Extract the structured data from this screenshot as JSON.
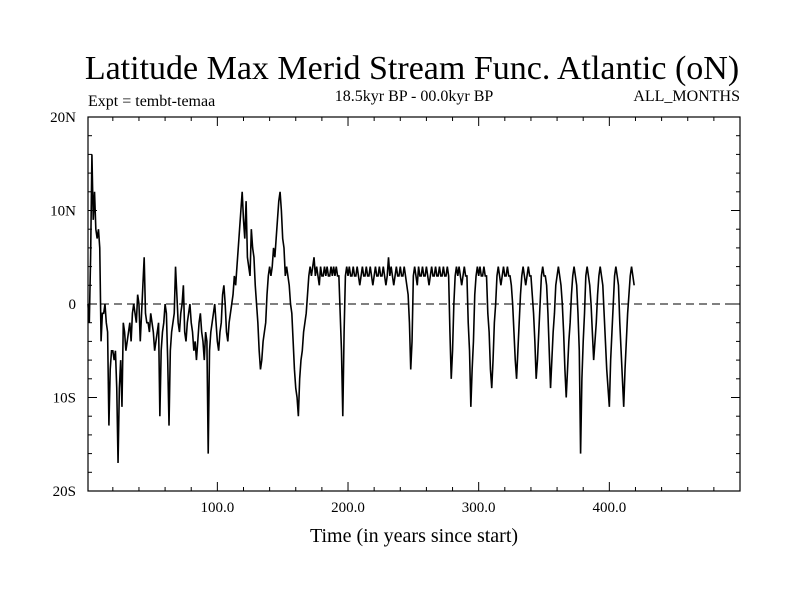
{
  "chart_data": {
    "type": "line",
    "title": "Latitude Max Merid Stream Func. Atlantic (oN)",
    "subtitle_left": "Expt = tembt-temaa",
    "subtitle_center": "18.5kyr BP - 00.0kyr BP",
    "subtitle_right": "ALL_MONTHS",
    "xlabel": "Time (in years since start)",
    "ylabel": "",
    "xlim": [
      1,
      500
    ],
    "ylim": [
      -20,
      20
    ],
    "xticks": [
      {
        "value": 100,
        "label": "100.0"
      },
      {
        "value": 200,
        "label": "200.0"
      },
      {
        "value": 300,
        "label": "300.0"
      },
      {
        "value": 400,
        "label": "400.0"
      }
    ],
    "yticks": [
      {
        "value": 20,
        "label": "20N"
      },
      {
        "value": 10,
        "label": "10N"
      },
      {
        "value": 0,
        "label": "0"
      },
      {
        "value": -10,
        "label": "10S"
      },
      {
        "value": -20,
        "label": "20S"
      }
    ],
    "zero_line": {
      "value": 0,
      "style": "dashed"
    },
    "series": [
      {
        "name": "tembt-temaa",
        "x_start": 1,
        "x_step": 1,
        "values": [
          0,
          -2,
          5,
          16,
          9,
          12,
          8,
          7,
          8,
          6,
          -4,
          -1,
          -1,
          0,
          -2,
          -3,
          -13,
          -7,
          -5,
          -5,
          -6,
          -5,
          -9,
          -17,
          -9,
          -6,
          -11,
          -2,
          -3,
          -5,
          -4,
          -3,
          -2,
          -4,
          -1,
          0,
          -1,
          -2,
          1,
          0,
          -4,
          -1,
          2,
          5,
          -1,
          -2,
          -2,
          -3,
          -1,
          -2,
          -3,
          -5,
          -4,
          -3,
          -2,
          -12,
          -5,
          -3,
          -2,
          0,
          -1,
          -6,
          -13,
          -5,
          -3,
          -2,
          -1,
          4,
          1,
          -2,
          -3,
          -1,
          0,
          2,
          -3,
          -4,
          -2,
          -1,
          0,
          -2,
          -3,
          -5,
          -4,
          -6,
          -4,
          -2,
          -1,
          -3,
          -4,
          -6,
          -3,
          -4,
          -16,
          -5,
          -3,
          -2,
          -1,
          0,
          -2,
          -4,
          -5,
          -3,
          -2,
          1,
          2,
          0,
          -3,
          -4,
          -2,
          -1,
          0,
          1,
          3,
          2,
          4,
          6,
          8,
          10,
          12,
          9,
          7,
          11,
          5,
          4,
          3,
          8,
          6,
          5,
          2,
          0,
          -2,
          -5,
          -7,
          -6,
          -4,
          -3,
          -2,
          1,
          3,
          4,
          3,
          4,
          6,
          5,
          7,
          9,
          11,
          12,
          10,
          7,
          6,
          3,
          4,
          3,
          2,
          0,
          -1,
          -4,
          -7,
          -9,
          -10,
          -12,
          -8,
          -6,
          -5,
          -3,
          -2,
          -1,
          1,
          3,
          4,
          3,
          4,
          5,
          3,
          4,
          3,
          2,
          4,
          3,
          3,
          4,
          3,
          4,
          3,
          3,
          4,
          3,
          4,
          3,
          4,
          3,
          3,
          -1,
          -5,
          -12,
          -3,
          3,
          4,
          3,
          4,
          3,
          3,
          4,
          3,
          3,
          4,
          3,
          2,
          3,
          4,
          3,
          3,
          4,
          3,
          3,
          4,
          3,
          2,
          3,
          4,
          3,
          3,
          4,
          3,
          3,
          4,
          3,
          2,
          3,
          5,
          3,
          4,
          3,
          2,
          3,
          4,
          3,
          3,
          4,
          3,
          3,
          4,
          3,
          2,
          1,
          -2,
          -7,
          -4,
          3,
          4,
          3,
          2,
          4,
          3,
          3,
          4,
          3,
          3,
          4,
          3,
          2,
          3,
          4,
          3,
          3,
          4,
          3,
          3,
          4,
          3,
          3,
          4,
          3,
          3,
          4,
          3,
          -3,
          -8,
          -5,
          0,
          3,
          4,
          3,
          4,
          3,
          2,
          3,
          4,
          3,
          3,
          -2,
          -5,
          -11,
          -7,
          -4,
          1,
          3,
          4,
          3,
          4,
          3,
          3,
          4,
          3,
          3,
          -1,
          -3,
          -7,
          -9,
          -6,
          -2,
          0,
          3,
          4,
          3,
          2,
          3,
          4,
          3,
          3,
          4,
          3,
          3,
          2,
          0,
          -3,
          -6,
          -8,
          -5,
          -2,
          1,
          3,
          4,
          3,
          2,
          3,
          4,
          3,
          3,
          1,
          -1,
          -4,
          -8,
          -6,
          -3,
          0,
          3,
          4,
          3,
          3,
          2,
          -1,
          -5,
          -9,
          -6,
          -3,
          -1,
          2,
          3,
          4,
          3,
          2,
          0,
          -3,
          -7,
          -10,
          -7,
          -4,
          -2,
          1,
          3,
          4,
          3,
          2,
          -1,
          -5,
          -16,
          -8,
          -4,
          -1,
          3,
          4,
          3,
          2,
          0,
          -3,
          -6,
          -4,
          -2,
          1,
          3,
          4,
          3,
          2,
          -1,
          -4,
          -7,
          -9,
          -11,
          -6,
          -3,
          0,
          3,
          4,
          3,
          2,
          -2,
          -5,
          -8,
          -11,
          -7,
          -4,
          -1,
          1,
          3,
          4,
          3,
          2
        ]
      }
    ]
  }
}
